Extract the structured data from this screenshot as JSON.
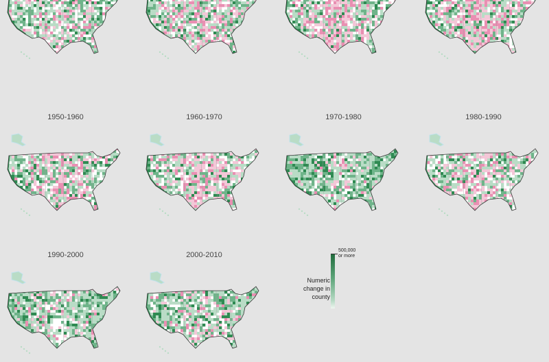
{
  "colors": {
    "background": "#e4e4e4",
    "gain_dark": "#2f8a52",
    "gain_mid": "#6fb48a",
    "gain_light": "#b9dcc6",
    "no_change": "#ffffff",
    "loss_light": "#f3c7d7",
    "loss_mid": "#e98fb2",
    "border": "#333333",
    "water": "#bfe2ec"
  },
  "panels": [
    {
      "period": "",
      "loss_share": 0.25,
      "gain_share": 0.55
    },
    {
      "period": "",
      "loss_share": 0.35,
      "gain_share": 0.5
    },
    {
      "period": "",
      "loss_share": 0.45,
      "gain_share": 0.4
    },
    {
      "period": "",
      "loss_share": 0.42,
      "gain_share": 0.45
    },
    {
      "period": "1950-1960",
      "loss_share": 0.35,
      "gain_share": 0.45
    },
    {
      "period": "1960-1970",
      "loss_share": 0.38,
      "gain_share": 0.45
    },
    {
      "period": "1970-1980",
      "loss_share": 0.12,
      "gain_share": 0.75
    },
    {
      "period": "1980-1990",
      "loss_share": 0.32,
      "gain_share": 0.5
    },
    {
      "period": "1990-2000",
      "loss_share": 0.15,
      "gain_share": 0.72
    },
    {
      "period": "2000-2010",
      "loss_share": 0.22,
      "gain_share": 0.62
    }
  ],
  "legend": {
    "title_lines": [
      "Numeric",
      "change in",
      "county"
    ],
    "max_label_lines": [
      "500,000",
      "or more"
    ]
  }
}
